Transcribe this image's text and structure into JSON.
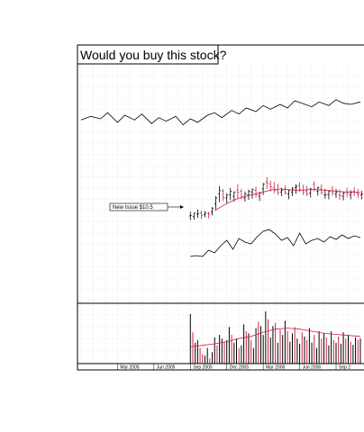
{
  "chart_data": {
    "type": "line",
    "title": "Would you buy this stock?",
    "x_tick_labels": [
      "Mar 2005",
      "Jun 2005",
      "Sep 2005",
      "Dec 2005",
      "Mar 2006",
      "Jun 2006",
      "Sep 2"
    ],
    "x_tick_positions": [
      3,
      6,
      9,
      12,
      15,
      18,
      21
    ],
    "annotation": {
      "text": "New Issue $10.5",
      "x": 9.0
    },
    "grid": true,
    "colors": {
      "price_bars": "#000000",
      "moving_average": "#cc2244",
      "volume_bars": "#000000",
      "volume_bars_alt": "#cc2244",
      "lines": "#000000"
    },
    "top_line": {
      "x": [
        0.0,
        0.8,
        1.6,
        2.2,
        3.0,
        3.6,
        4.4,
        5.0,
        5.8,
        6.4,
        7.0,
        7.8,
        8.4,
        9.0,
        9.6,
        10.4,
        11.0,
        11.6,
        12.4,
        13.0,
        13.6,
        14.4,
        15.0,
        15.6,
        16.4,
        17.0,
        17.6,
        18.2,
        19.0,
        19.6,
        20.4,
        21.0,
        21.6,
        22.2,
        23.0
      ],
      "y": [
        40,
        43,
        41,
        46,
        38,
        44,
        40,
        45,
        37,
        42,
        39,
        43,
        36,
        41,
        38,
        44,
        46,
        42,
        48,
        45,
        50,
        47,
        52,
        49,
        53,
        50,
        56,
        54,
        51,
        55,
        52,
        57,
        54,
        53,
        55
      ]
    },
    "price_ohlc": {
      "x": [
        9.0,
        9.3,
        9.6,
        9.9,
        10.2,
        10.5,
        10.8,
        11.1,
        11.4,
        11.7,
        12.0,
        12.3,
        12.6,
        12.9,
        13.2,
        13.5,
        13.8,
        14.1,
        14.4,
        14.7,
        15.0,
        15.3,
        15.6,
        15.9,
        16.2,
        16.5,
        16.8,
        17.1,
        17.4,
        17.7,
        18.0,
        18.3,
        18.6,
        18.9,
        19.2,
        19.5,
        19.8,
        20.1,
        20.4,
        20.7,
        21.0,
        21.3,
        21.6,
        21.9,
        22.2,
        22.5,
        22.8,
        23.1
      ],
      "high": [
        11.2,
        11.0,
        11.6,
        11.4,
        11.3,
        11.2,
        12.0,
        13.8,
        15.5,
        15.0,
        14.3,
        15.2,
        14.6,
        15.8,
        15.0,
        14.6,
        14.9,
        15.1,
        15.4,
        14.5,
        16.0,
        17.0,
        16.4,
        16.2,
        15.9,
        15.2,
        15.6,
        14.9,
        15.3,
        15.8,
        16.1,
        15.7,
        15.5,
        15.2,
        16.3,
        15.4,
        15.8,
        15.0,
        14.8,
        15.5,
        15.0,
        14.9,
        14.6,
        15.2,
        14.8,
        15.3,
        15.0,
        14.7
      ],
      "low": [
        9.8,
        9.9,
        10.2,
        10.0,
        10.3,
        10.1,
        10.6,
        11.6,
        12.8,
        13.0,
        12.6,
        13.2,
        12.9,
        13.4,
        13.3,
        12.9,
        13.2,
        13.4,
        13.6,
        13.0,
        14.0,
        15.0,
        14.6,
        14.3,
        14.0,
        13.8,
        14.1,
        13.3,
        13.8,
        14.2,
        14.5,
        14.0,
        13.8,
        13.6,
        14.6,
        13.9,
        14.1,
        13.4,
        13.3,
        13.9,
        13.5,
        13.2,
        13.1,
        13.6,
        13.3,
        13.8,
        13.5,
        13.3
      ],
      "open": [
        10.5,
        10.4,
        10.8,
        11.0,
        10.7,
        10.9,
        11.2,
        12.5,
        14.2,
        14.6,
        13.5,
        14.0,
        13.8,
        14.8,
        14.6,
        13.5,
        14.0,
        14.5,
        14.8,
        13.8,
        15.0,
        16.2,
        15.8,
        15.2,
        14.8,
        14.5,
        15.0,
        14.2,
        14.5,
        15.2,
        15.5,
        14.8,
        14.6,
        14.3,
        15.8,
        14.6,
        15.0,
        14.0,
        14.1,
        14.8,
        14.2,
        14.0,
        13.8,
        14.5,
        14.0,
        14.6,
        14.3,
        14.0
      ],
      "close": [
        10.6,
        11.0,
        10.9,
        10.6,
        11.0,
        10.8,
        11.8,
        13.5,
        14.8,
        13.6,
        14.0,
        14.6,
        14.5,
        14.4,
        13.8,
        14.2,
        14.6,
        14.9,
        14.0,
        14.3,
        15.8,
        16.0,
        15.4,
        14.7,
        14.4,
        14.8,
        14.3,
        14.8,
        15.0,
        15.4,
        14.9,
        14.5,
        14.2,
        15.0,
        15.0,
        15.2,
        14.4,
        14.0,
        14.6,
        14.4,
        14.5,
        13.9,
        14.3,
        14.3,
        14.4,
        14.5,
        14.1,
        14.2
      ]
    },
    "moving_average": {
      "x": [
        11.0,
        11.6,
        12.2,
        12.8,
        13.4,
        14.0,
        14.6,
        15.2,
        15.8,
        16.4,
        17.0,
        17.6,
        18.2,
        18.8,
        19.4,
        20.0,
        20.6,
        21.2,
        21.8,
        22.4,
        23.0
      ],
      "y": [
        11.4,
        12.1,
        12.8,
        13.3,
        13.7,
        14.0,
        14.3,
        14.6,
        14.9,
        15.0,
        14.9,
        14.8,
        14.8,
        14.9,
        14.9,
        14.8,
        14.7,
        14.6,
        14.5,
        14.5,
        14.4
      ]
    },
    "oscillator_line": {
      "x": [
        9.0,
        9.5,
        10.0,
        10.5,
        11.0,
        11.5,
        12.0,
        12.5,
        13.0,
        13.5,
        14.0,
        14.5,
        15.0,
        15.5,
        16.0,
        16.5,
        17.0,
        17.5,
        18.0,
        18.5,
        19.0,
        19.5,
        20.0,
        20.5,
        21.0,
        21.5,
        22.0,
        22.5,
        23.0
      ],
      "y": [
        30,
        31,
        30,
        37,
        34,
        42,
        48,
        38,
        50,
        46,
        44,
        52,
        58,
        60,
        55,
        48,
        51,
        42,
        56,
        44,
        48,
        50,
        46,
        52,
        49,
        54,
        50,
        53,
        51
      ]
    },
    "volume": {
      "x": [
        9.0,
        9.2,
        9.4,
        9.6,
        9.8,
        10.0,
        10.2,
        10.4,
        10.6,
        10.8,
        11.0,
        11.2,
        11.4,
        11.6,
        11.8,
        12.0,
        12.2,
        12.4,
        12.6,
        12.8,
        13.0,
        13.2,
        13.4,
        13.6,
        13.8,
        14.0,
        14.2,
        14.4,
        14.6,
        14.8,
        15.0,
        15.2,
        15.4,
        15.6,
        15.8,
        16.0,
        16.2,
        16.4,
        16.6,
        16.8,
        17.0,
        17.2,
        17.4,
        17.6,
        17.8,
        18.0,
        18.2,
        18.4,
        18.6,
        18.8,
        19.0,
        19.2,
        19.4,
        19.6,
        19.8,
        20.0,
        20.2,
        20.4,
        20.6,
        20.8,
        21.0,
        21.2,
        21.4,
        21.6,
        21.8,
        22.0,
        22.2,
        22.4,
        22.6,
        22.8,
        23.0
      ],
      "values": [
        95,
        60,
        40,
        45,
        30,
        18,
        15,
        30,
        10,
        22,
        50,
        35,
        55,
        48,
        42,
        45,
        70,
        55,
        40,
        48,
        30,
        35,
        75,
        62,
        58,
        45,
        30,
        68,
        80,
        72,
        55,
        100,
        85,
        50,
        72,
        78,
        40,
        65,
        55,
        82,
        62,
        42,
        58,
        70,
        48,
        38,
        60,
        52,
        45,
        68,
        40,
        55,
        30,
        62,
        48,
        58,
        50,
        35,
        62,
        45,
        40,
        52,
        38,
        60,
        48,
        55,
        42,
        36,
        50,
        45,
        48
      ],
      "up": [
        1,
        0,
        1,
        1,
        0,
        0,
        1,
        1,
        0,
        1,
        1,
        0,
        1,
        1,
        0,
        1,
        1,
        0,
        1,
        1,
        0,
        1,
        1,
        0,
        1,
        0,
        1,
        1,
        0,
        1,
        1,
        1,
        0,
        1,
        1,
        0,
        1,
        0,
        1,
        1,
        0,
        1,
        1,
        0,
        1,
        1,
        0,
        1,
        0,
        1,
        1,
        0,
        1,
        1,
        0,
        1,
        0,
        1,
        1,
        0,
        1,
        0,
        1,
        1,
        0,
        1,
        0,
        1,
        1,
        0,
        1
      ],
      "ma": {
        "x": [
          9.0,
          10.0,
          11.0,
          12.0,
          13.0,
          14.0,
          15.0,
          16.0,
          17.0,
          18.0,
          19.0,
          20.0,
          21.0,
          22.0,
          23.0
        ],
        "y": [
          32,
          35,
          38,
          42,
          48,
          52,
          60,
          66,
          68,
          66,
          62,
          58,
          56,
          54,
          52
        ]
      }
    }
  }
}
